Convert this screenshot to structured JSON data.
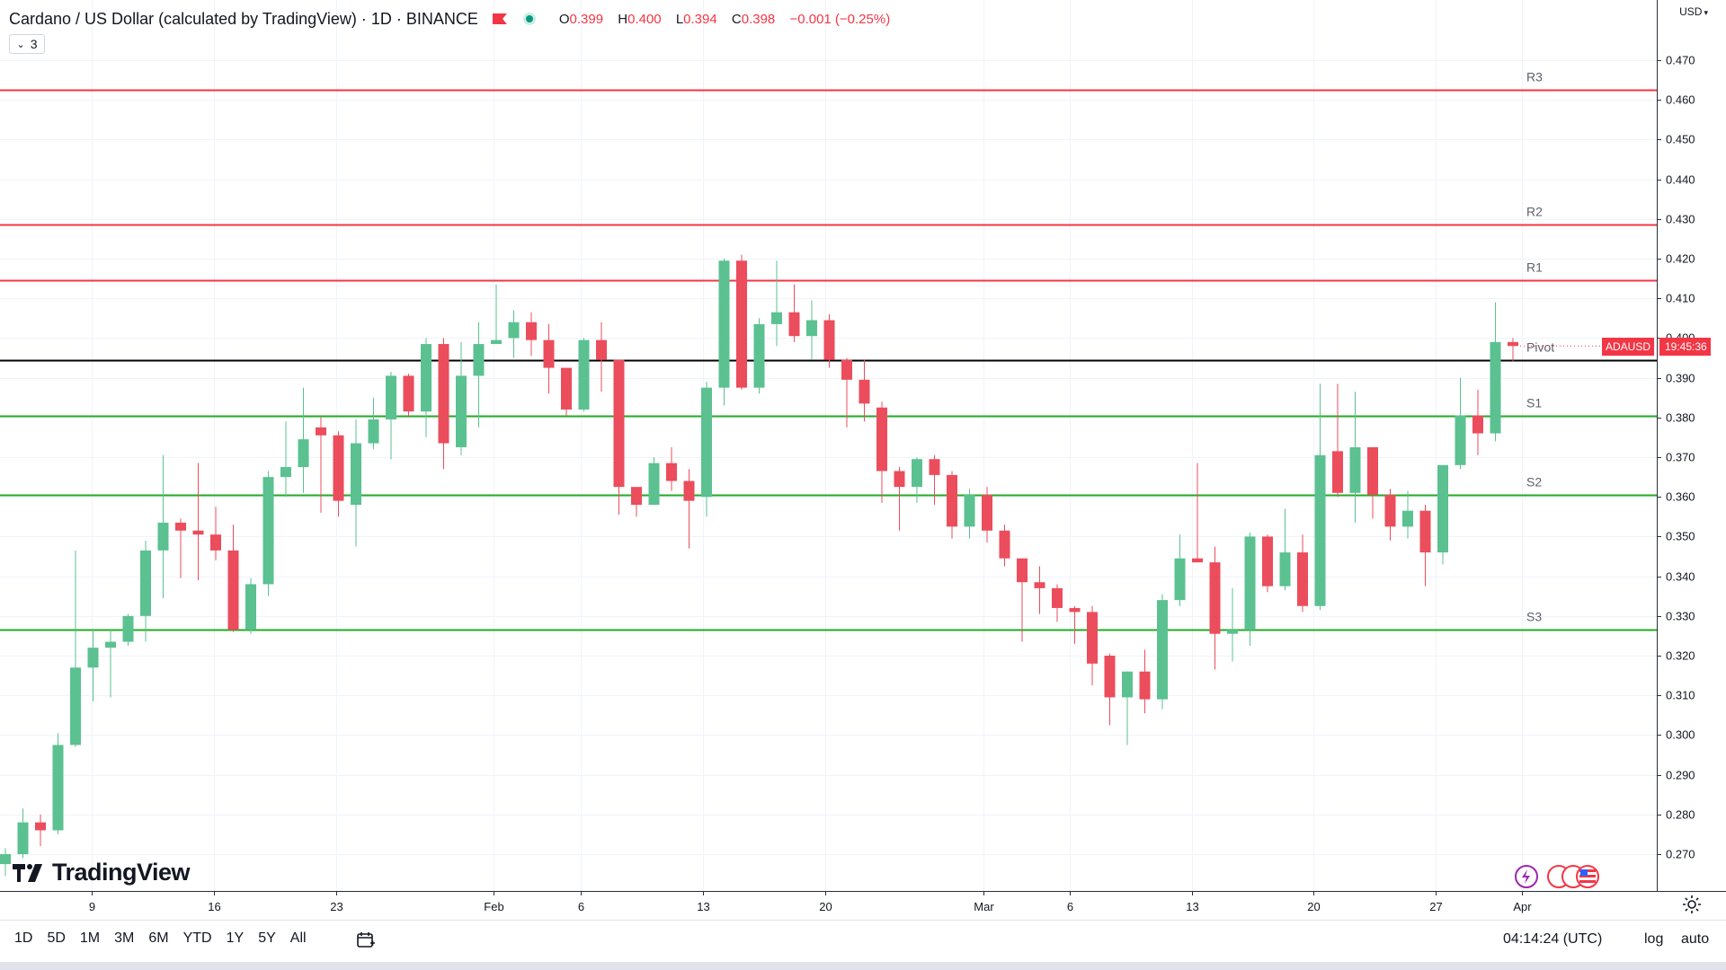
{
  "header": {
    "symbol_title": "Cardano / US Dollar (calculated by TradingView) · 1D · BINANCE",
    "ohlc": {
      "o_label": "O",
      "o": "0.399",
      "h_label": "H",
      "h": "0.400",
      "l_label": "L",
      "l": "0.394",
      "c_label": "C",
      "c": "0.398",
      "change": "−0.001 (−0.25%)"
    },
    "indicator_count": "3"
  },
  "price_axis": {
    "currency": "USD",
    "symbol_tag": "ADAUSD",
    "countdown": "19:45:36"
  },
  "branding": {
    "logo_text": "TradingView"
  },
  "bottom_bar": {
    "ranges": [
      "1D",
      "5D",
      "1M",
      "3M",
      "6M",
      "YTD",
      "1Y",
      "5Y",
      "All"
    ],
    "time": "04:14:24 (UTC)",
    "log_label": "log",
    "auto_label": "auto"
  },
  "colors": {
    "up": "#5bc191",
    "down": "#eb4d5c",
    "resistance": "#f23645",
    "support": "#22ab22",
    "pivot": "#000000",
    "grid": "#f0f3fa"
  },
  "chart_data": {
    "type": "candlestick",
    "symbol": "ADAUSD",
    "interval": "1D",
    "exchange": "BINANCE",
    "ylim": [
      0.262,
      0.482
    ],
    "y_ticks": [
      "0.270",
      "0.280",
      "0.290",
      "0.300",
      "0.310",
      "0.320",
      "0.330",
      "0.340",
      "0.350",
      "0.360",
      "0.370",
      "0.380",
      "0.390",
      "0.400",
      "0.410",
      "0.420",
      "0.430",
      "0.440",
      "0.450",
      "0.460",
      "0.470"
    ],
    "x_ticks": [
      "9",
      "16",
      "23",
      "Feb",
      "6",
      "13",
      "20",
      "Mar",
      "6",
      "13",
      "20",
      "27",
      "Apr"
    ],
    "levels": [
      {
        "name": "R3",
        "value": 0.4625
      },
      {
        "name": "R2",
        "value": 0.4285
      },
      {
        "name": "R1",
        "value": 0.4145
      },
      {
        "name": "Pivot",
        "value": 0.3945
      },
      {
        "name": "S1",
        "value": 0.3805
      },
      {
        "name": "S2",
        "value": 0.3605
      },
      {
        "name": "S3",
        "value": 0.3265
      }
    ],
    "candles": [
      {
        "o": 0.2675,
        "h": 0.2715,
        "l": 0.2645,
        "c": 0.27
      },
      {
        "o": 0.27,
        "h": 0.2815,
        "l": 0.269,
        "c": 0.278
      },
      {
        "o": 0.278,
        "h": 0.28,
        "l": 0.272,
        "c": 0.276
      },
      {
        "o": 0.276,
        "h": 0.3005,
        "l": 0.275,
        "c": 0.2975
      },
      {
        "o": 0.2975,
        "h": 0.3465,
        "l": 0.297,
        "c": 0.317
      },
      {
        "o": 0.317,
        "h": 0.3265,
        "l": 0.3085,
        "c": 0.322
      },
      {
        "o": 0.322,
        "h": 0.3265,
        "l": 0.3095,
        "c": 0.3235
      },
      {
        "o": 0.3235,
        "h": 0.3305,
        "l": 0.3225,
        "c": 0.33
      },
      {
        "o": 0.33,
        "h": 0.349,
        "l": 0.3235,
        "c": 0.3465
      },
      {
        "o": 0.3465,
        "h": 0.3705,
        "l": 0.3345,
        "c": 0.3535
      },
      {
        "o": 0.3535,
        "h": 0.3545,
        "l": 0.3395,
        "c": 0.3515
      },
      {
        "o": 0.3515,
        "h": 0.3685,
        "l": 0.339,
        "c": 0.3505
      },
      {
        "o": 0.3505,
        "h": 0.3575,
        "l": 0.344,
        "c": 0.3465
      },
      {
        "o": 0.3465,
        "h": 0.353,
        "l": 0.326,
        "c": 0.3265
      },
      {
        "o": 0.3265,
        "h": 0.3395,
        "l": 0.3255,
        "c": 0.338
      },
      {
        "o": 0.338,
        "h": 0.3665,
        "l": 0.335,
        "c": 0.365
      },
      {
        "o": 0.365,
        "h": 0.379,
        "l": 0.36,
        "c": 0.3675
      },
      {
        "o": 0.3675,
        "h": 0.3875,
        "l": 0.361,
        "c": 0.3745
      },
      {
        "o": 0.3775,
        "h": 0.38,
        "l": 0.356,
        "c": 0.3755
      },
      {
        "o": 0.3755,
        "h": 0.3765,
        "l": 0.355,
        "c": 0.359
      },
      {
        "o": 0.358,
        "h": 0.3795,
        "l": 0.3475,
        "c": 0.3735
      },
      {
        "o": 0.3735,
        "h": 0.385,
        "l": 0.372,
        "c": 0.3795
      },
      {
        "o": 0.3795,
        "h": 0.3915,
        "l": 0.3695,
        "c": 0.3905
      },
      {
        "o": 0.3905,
        "h": 0.391,
        "l": 0.38,
        "c": 0.3815
      },
      {
        "o": 0.3815,
        "h": 0.4,
        "l": 0.375,
        "c": 0.3985
      },
      {
        "o": 0.3985,
        "h": 0.4,
        "l": 0.367,
        "c": 0.3735
      },
      {
        "o": 0.3725,
        "h": 0.399,
        "l": 0.3705,
        "c": 0.3905
      },
      {
        "o": 0.3905,
        "h": 0.404,
        "l": 0.3775,
        "c": 0.3985
      },
      {
        "o": 0.3985,
        "h": 0.4135,
        "l": 0.3985,
        "c": 0.3995
      },
      {
        "o": 0.4,
        "h": 0.407,
        "l": 0.395,
        "c": 0.404
      },
      {
        "o": 0.404,
        "h": 0.4065,
        "l": 0.3955,
        "c": 0.3995
      },
      {
        "o": 0.3995,
        "h": 0.4035,
        "l": 0.386,
        "c": 0.3925
      },
      {
        "o": 0.3925,
        "h": 0.3925,
        "l": 0.3805,
        "c": 0.382
      },
      {
        "o": 0.382,
        "h": 0.4,
        "l": 0.3815,
        "c": 0.3995
      },
      {
        "o": 0.3995,
        "h": 0.404,
        "l": 0.3865,
        "c": 0.3945
      },
      {
        "o": 0.3945,
        "h": 0.3945,
        "l": 0.3555,
        "c": 0.3625
      },
      {
        "o": 0.3625,
        "h": 0.362,
        "l": 0.355,
        "c": 0.358
      },
      {
        "o": 0.358,
        "h": 0.37,
        "l": 0.358,
        "c": 0.3685
      },
      {
        "o": 0.3685,
        "h": 0.3725,
        "l": 0.3615,
        "c": 0.364
      },
      {
        "o": 0.364,
        "h": 0.367,
        "l": 0.347,
        "c": 0.359
      },
      {
        "o": 0.36,
        "h": 0.389,
        "l": 0.355,
        "c": 0.3875
      },
      {
        "o": 0.3875,
        "h": 0.42,
        "l": 0.383,
        "c": 0.4195
      },
      {
        "o": 0.4195,
        "h": 0.421,
        "l": 0.387,
        "c": 0.3875
      },
      {
        "o": 0.3875,
        "h": 0.405,
        "l": 0.386,
        "c": 0.4035
      },
      {
        "o": 0.4035,
        "h": 0.4195,
        "l": 0.398,
        "c": 0.4065
      },
      {
        "o": 0.4065,
        "h": 0.4135,
        "l": 0.399,
        "c": 0.4005
      },
      {
        "o": 0.4005,
        "h": 0.4095,
        "l": 0.3945,
        "c": 0.4045
      },
      {
        "o": 0.4045,
        "h": 0.406,
        "l": 0.3925,
        "c": 0.3945
      },
      {
        "o": 0.3945,
        "h": 0.395,
        "l": 0.3775,
        "c": 0.3895
      },
      {
        "o": 0.3895,
        "h": 0.3945,
        "l": 0.379,
        "c": 0.3835
      },
      {
        "o": 0.3825,
        "h": 0.384,
        "l": 0.3585,
        "c": 0.3665
      },
      {
        "o": 0.3665,
        "h": 0.3675,
        "l": 0.3515,
        "c": 0.3625
      },
      {
        "o": 0.3625,
        "h": 0.37,
        "l": 0.3585,
        "c": 0.3695
      },
      {
        "o": 0.3695,
        "h": 0.3705,
        "l": 0.358,
        "c": 0.3655
      },
      {
        "o": 0.3655,
        "h": 0.3665,
        "l": 0.3495,
        "c": 0.3525
      },
      {
        "o": 0.3525,
        "h": 0.362,
        "l": 0.3495,
        "c": 0.3605
      },
      {
        "o": 0.3605,
        "h": 0.3625,
        "l": 0.3485,
        "c": 0.3515
      },
      {
        "o": 0.3515,
        "h": 0.353,
        "l": 0.3425,
        "c": 0.3445
      },
      {
        "o": 0.3445,
        "h": 0.3445,
        "l": 0.3235,
        "c": 0.3385
      },
      {
        "o": 0.3385,
        "h": 0.3425,
        "l": 0.3305,
        "c": 0.337
      },
      {
        "o": 0.337,
        "h": 0.338,
        "l": 0.3285,
        "c": 0.332
      },
      {
        "o": 0.332,
        "h": 0.3325,
        "l": 0.323,
        "c": 0.331
      },
      {
        "o": 0.331,
        "h": 0.3325,
        "l": 0.3125,
        "c": 0.318
      },
      {
        "o": 0.32,
        "h": 0.3205,
        "l": 0.3025,
        "c": 0.3095
      },
      {
        "o": 0.3095,
        "h": 0.316,
        "l": 0.2975,
        "c": 0.316
      },
      {
        "o": 0.316,
        "h": 0.3215,
        "l": 0.3055,
        "c": 0.309
      },
      {
        "o": 0.309,
        "h": 0.3355,
        "l": 0.3065,
        "c": 0.334
      },
      {
        "o": 0.334,
        "h": 0.3505,
        "l": 0.3325,
        "c": 0.3445
      },
      {
        "o": 0.3445,
        "h": 0.3685,
        "l": 0.3435,
        "c": 0.3435
      },
      {
        "o": 0.3435,
        "h": 0.3475,
        "l": 0.3165,
        "c": 0.3255
      },
      {
        "o": 0.3255,
        "h": 0.337,
        "l": 0.3185,
        "c": 0.3265
      },
      {
        "o": 0.3265,
        "h": 0.351,
        "l": 0.3225,
        "c": 0.35
      },
      {
        "o": 0.35,
        "h": 0.3505,
        "l": 0.336,
        "c": 0.3375
      },
      {
        "o": 0.3375,
        "h": 0.357,
        "l": 0.3365,
        "c": 0.346
      },
      {
        "o": 0.346,
        "h": 0.3505,
        "l": 0.331,
        "c": 0.3325
      },
      {
        "o": 0.3325,
        "h": 0.3885,
        "l": 0.3315,
        "c": 0.3705
      },
      {
        "o": 0.3715,
        "h": 0.3885,
        "l": 0.36,
        "c": 0.361
      },
      {
        "o": 0.361,
        "h": 0.3865,
        "l": 0.3535,
        "c": 0.3725
      },
      {
        "o": 0.3725,
        "h": 0.3725,
        "l": 0.3545,
        "c": 0.3605
      },
      {
        "o": 0.3605,
        "h": 0.362,
        "l": 0.349,
        "c": 0.3525
      },
      {
        "o": 0.3525,
        "h": 0.3615,
        "l": 0.3495,
        "c": 0.3565
      },
      {
        "o": 0.3565,
        "h": 0.358,
        "l": 0.3375,
        "c": 0.346
      },
      {
        "o": 0.346,
        "h": 0.3675,
        "l": 0.343,
        "c": 0.368
      },
      {
        "o": 0.368,
        "h": 0.39,
        "l": 0.367,
        "c": 0.3805
      },
      {
        "o": 0.3805,
        "h": 0.387,
        "l": 0.3705,
        "c": 0.376
      },
      {
        "o": 0.376,
        "h": 0.409,
        "l": 0.374,
        "c": 0.399
      },
      {
        "o": 0.399,
        "h": 0.4,
        "l": 0.394,
        "c": 0.398
      }
    ]
  }
}
